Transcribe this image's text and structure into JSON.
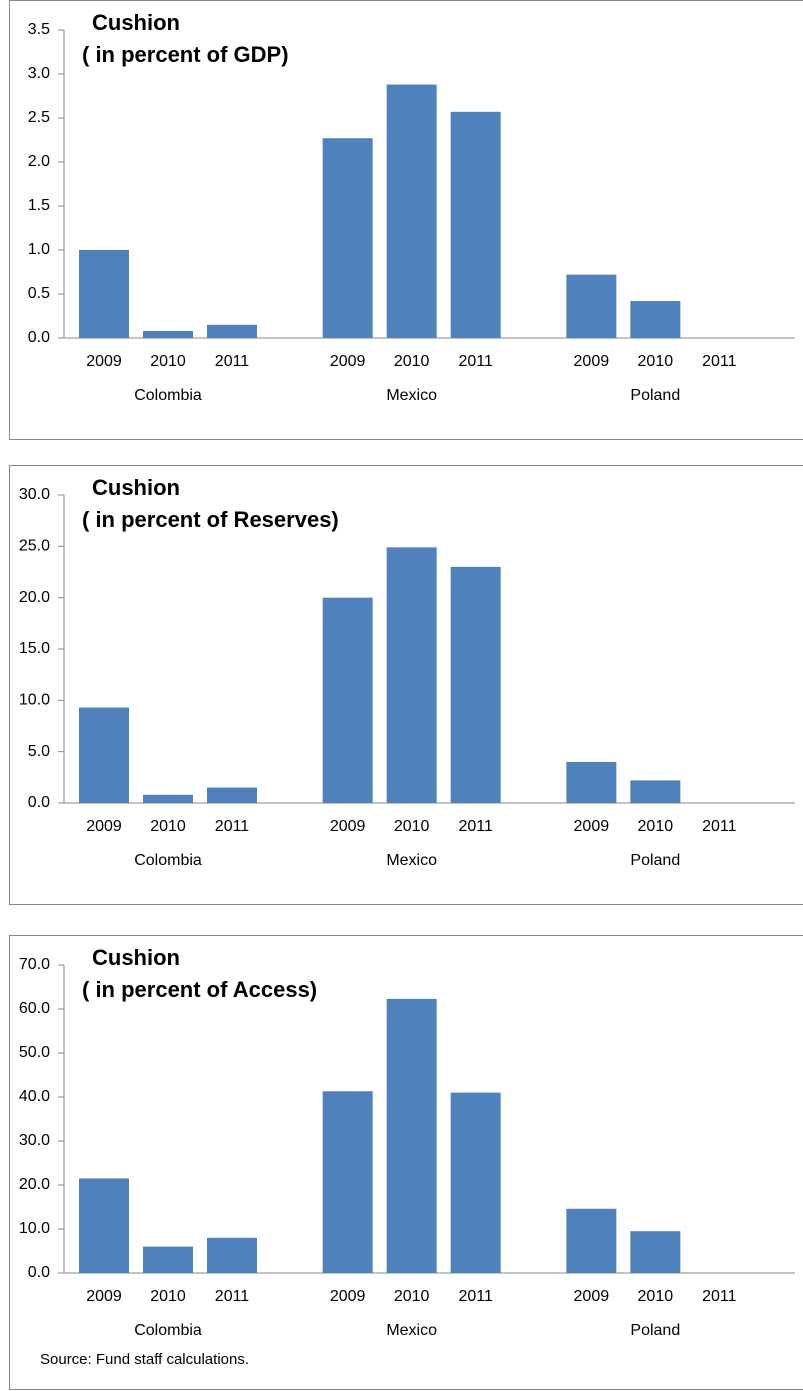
{
  "chart_data": [
    {
      "type": "bar",
      "title": "Cushion",
      "subtitle": "( in percent of GDP)",
      "categories": [
        "2009",
        "2010",
        "2011",
        "2009",
        "2010",
        "2011",
        "2009",
        "2010",
        "2011"
      ],
      "groups": [
        "Colombia",
        "Mexico",
        "Poland"
      ],
      "values": [
        1.0,
        0.08,
        0.15,
        2.27,
        2.88,
        2.57,
        0.72,
        0.42,
        0
      ],
      "color": "#4f81bd",
      "ylim": [
        0,
        3.5
      ],
      "yticks": [
        {
          "value": 0,
          "label": "0.0"
        },
        0.5,
        {
          "value": 1,
          "label": "1.0"
        },
        1.5,
        {
          "value": 2,
          "label": "2.0"
        },
        2.5,
        {
          "value": 3,
          "label": "3.0"
        },
        3.5
      ]
    },
    {
      "type": "bar",
      "title": "Cushion",
      "subtitle": "( in percent of Reserves)",
      "categories": [
        "2009",
        "2010",
        "2011",
        "2009",
        "2010",
        "2011",
        "2009",
        "2010",
        "2011"
      ],
      "groups": [
        "Colombia",
        "Mexico",
        "Poland"
      ],
      "values": [
        9.3,
        0.8,
        1.5,
        20.0,
        24.9,
        23.0,
        4.0,
        2.2,
        0
      ],
      "color": "#4f81bd",
      "ylim": [
        0,
        30
      ],
      "yticks": [
        {
          "value": 0,
          "label": "0.0"
        },
        {
          "value": 5,
          "label": "5.0"
        },
        {
          "value": 10,
          "label": "10.0"
        },
        {
          "value": 15,
          "label": "15.0"
        },
        {
          "value": 20,
          "label": "20.0"
        },
        {
          "value": 25,
          "label": "25.0"
        },
        {
          "value": 30,
          "label": "30.0"
        }
      ]
    },
    {
      "type": "bar",
      "title": "Cushion",
      "subtitle": "( in percent of Access)",
      "categories": [
        "2009",
        "2010",
        "2011",
        "2009",
        "2010",
        "2011",
        "2009",
        "2010",
        "2011"
      ],
      "groups": [
        "Colombia",
        "Mexico",
        "Poland"
      ],
      "values": [
        21.5,
        6.0,
        8.0,
        41.3,
        62.3,
        41.0,
        14.6,
        9.5,
        0
      ],
      "color": "#4f81bd",
      "ylim": [
        0,
        70
      ],
      "yticks": [
        {
          "value": 0,
          "label": "0.0"
        },
        {
          "value": 10,
          "label": "10.0"
        },
        {
          "value": 20,
          "label": "20.0"
        },
        {
          "value": 30,
          "label": "30.0"
        },
        {
          "value": 40,
          "label": "40.0"
        },
        {
          "value": 50,
          "label": "50.0"
        },
        {
          "value": 60,
          "label": "60.0"
        },
        {
          "value": 70,
          "label": "70.0"
        }
      ],
      "source": "Source: Fund staff calculations."
    }
  ]
}
